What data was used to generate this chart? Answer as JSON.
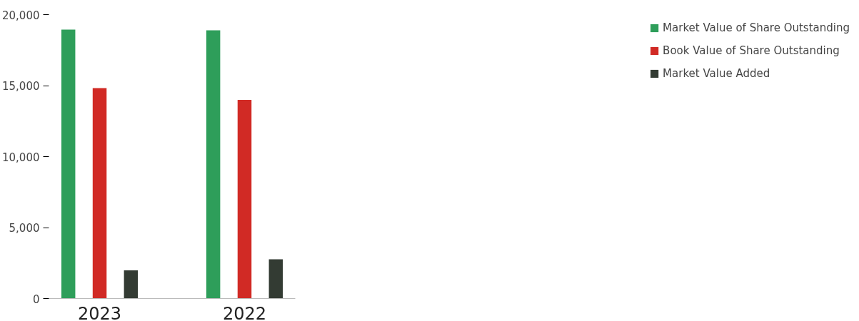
{
  "chart_data": {
    "type": "bar",
    "categories": [
      "2023",
      "2022"
    ],
    "series": [
      {
        "name": "Market Value of Share Outstanding",
        "color": "#2e9e5a",
        "values": [
          18950,
          18900
        ]
      },
      {
        "name": "Book Value of Share Outstanding",
        "color": "#d12a25",
        "values": [
          14830,
          14000
        ]
      },
      {
        "name": "Market Value Added",
        "color": "#333b33",
        "values": [
          1980,
          2770
        ]
      }
    ],
    "ylim": [
      0,
      20000
    ],
    "yticks": [
      {
        "value": 0,
        "label": "0"
      },
      {
        "value": 5000,
        "label": "5,000"
      },
      {
        "value": 10000,
        "label": "10,000"
      },
      {
        "value": 15000,
        "label": "15,000"
      },
      {
        "value": 20000,
        "label": "20,000"
      }
    ],
    "grid": false,
    "legend": "right"
  }
}
